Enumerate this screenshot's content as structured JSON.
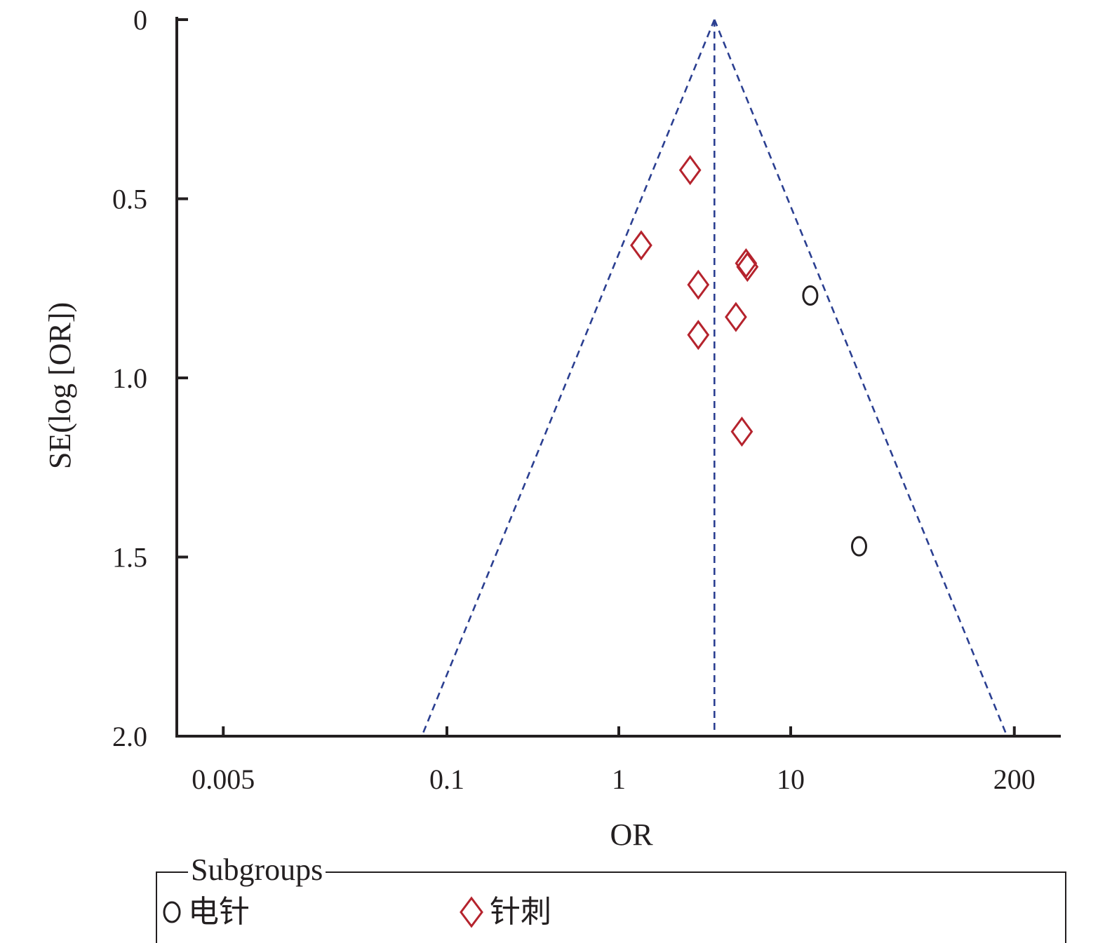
{
  "chart_data": {
    "type": "scatter",
    "title": "",
    "xlabel": "OR",
    "ylabel": "SE(log [OR])",
    "xscale": "log",
    "x_ticks": [
      0.005,
      0.1,
      1,
      10,
      200
    ],
    "x_tick_labels": [
      "0.005",
      "0.1",
      "1",
      "10",
      "200"
    ],
    "xlim": [
      0.0035,
      300
    ],
    "y_ticks": [
      0,
      0.5,
      1.0,
      1.5,
      2.0
    ],
    "y_tick_labels": [
      "0",
      "0.5",
      "1.0",
      "1.5",
      "2.0"
    ],
    "ylim": [
      0,
      2.0
    ],
    "y_inverted": true,
    "grid": false,
    "pooled_or": 3.6,
    "funnel_limits": "95% pseudo-confidence limits (dashed)",
    "line_color": "#2b3f91",
    "legend": {
      "title": "Subgroups",
      "placement": "bottom",
      "entries": [
        {
          "label": "电针",
          "marker": "circle",
          "color": "#231f20"
        },
        {
          "label": "针刺",
          "marker": "diamond",
          "color": "#b5232d"
        }
      ]
    },
    "series": [
      {
        "name": "电针",
        "marker": "circle",
        "color": "#231f20",
        "points": [
          {
            "x": 13.0,
            "y": 0.77
          },
          {
            "x": 25.0,
            "y": 1.47
          }
        ]
      },
      {
        "name": "针刺",
        "marker": "diamond",
        "color": "#b5232d",
        "points": [
          {
            "x": 2.6,
            "y": 0.42
          },
          {
            "x": 1.35,
            "y": 0.63
          },
          {
            "x": 5.5,
            "y": 0.68
          },
          {
            "x": 5.6,
            "y": 0.69
          },
          {
            "x": 2.9,
            "y": 0.74
          },
          {
            "x": 4.8,
            "y": 0.83
          },
          {
            "x": 2.9,
            "y": 0.88
          },
          {
            "x": 5.2,
            "y": 1.15
          }
        ]
      }
    ]
  }
}
